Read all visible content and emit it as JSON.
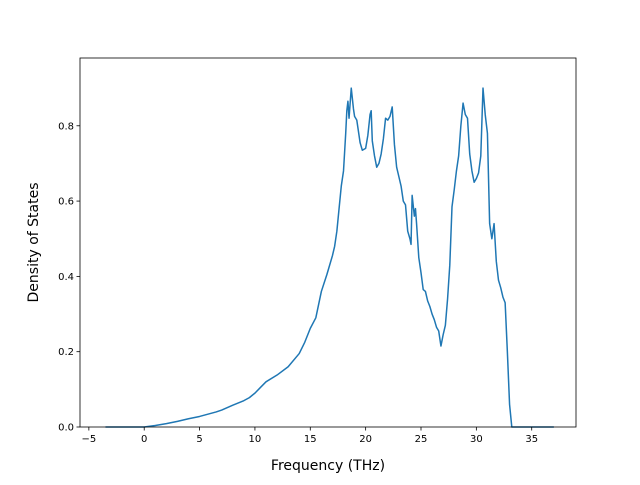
{
  "chart_data": {
    "type": "line",
    "title": "",
    "xlabel": "Frequency (THz)",
    "ylabel": "Density of States",
    "xlim": [
      -5.8,
      39
    ],
    "ylim": [
      0,
      0.98
    ],
    "xticks": [
      -5,
      0,
      5,
      10,
      15,
      20,
      25,
      30,
      35
    ],
    "xtick_labels": [
      "−5",
      "0",
      "5",
      "10",
      "15",
      "20",
      "25",
      "30",
      "35"
    ],
    "yticks": [
      0.0,
      0.2,
      0.4,
      0.6,
      0.8
    ],
    "ytick_labels": [
      "0.0",
      "0.2",
      "0.4",
      "0.6",
      "0.8"
    ],
    "grid": false,
    "legend": "none",
    "line_color": "#1f77b4",
    "series": [
      {
        "x": [
          -3.5,
          -2,
          -1,
          0,
          1,
          2,
          3,
          4,
          5,
          6,
          6.5,
          7,
          8,
          9,
          9.5,
          10,
          10.5,
          11,
          12,
          13,
          14,
          14.5,
          15,
          15.5,
          16,
          16.5,
          17,
          17.2,
          17.4,
          17.6,
          17.8,
          18,
          18.1,
          18.2,
          18.3,
          18.4,
          18.5,
          18.7,
          18.9,
          19,
          19.2,
          19.5,
          19.7,
          20,
          20.2,
          20.4,
          20.5,
          20.6,
          20.8,
          21,
          21.2,
          21.4,
          21.6,
          21.8,
          22,
          22.2,
          22.4,
          22.6,
          22.8,
          23,
          23.2,
          23.4,
          23.6,
          23.8,
          24,
          24.1,
          24.2,
          24.4,
          24.5,
          24.6,
          24.8,
          25,
          25.2,
          25.4,
          25.6,
          25.8,
          26,
          26.2,
          26.4,
          26.6,
          26.8,
          27,
          27.2,
          27.4,
          27.6,
          27.8,
          28,
          28.2,
          28.4,
          28.6,
          28.8,
          29,
          29.2,
          29.4,
          29.6,
          29.8,
          30,
          30.2,
          30.4,
          30.6,
          30.8,
          31,
          31.2,
          31.4,
          31.6,
          31.8,
          32,
          32.2,
          32.4,
          32.6,
          32.8,
          33,
          33.2,
          33.6,
          35,
          37
        ],
        "y": [
          0,
          0,
          0,
          0,
          0.004,
          0.009,
          0.015,
          0.022,
          0.028,
          0.036,
          0.04,
          0.045,
          0.058,
          0.07,
          0.078,
          0.09,
          0.105,
          0.12,
          0.138,
          0.16,
          0.195,
          0.225,
          0.262,
          0.29,
          0.36,
          0.405,
          0.455,
          0.48,
          0.52,
          0.58,
          0.64,
          0.68,
          0.73,
          0.78,
          0.84,
          0.865,
          0.82,
          0.9,
          0.845,
          0.825,
          0.815,
          0.755,
          0.735,
          0.74,
          0.775,
          0.83,
          0.84,
          0.76,
          0.72,
          0.69,
          0.7,
          0.725,
          0.765,
          0.82,
          0.815,
          0.825,
          0.85,
          0.75,
          0.69,
          0.665,
          0.64,
          0.6,
          0.59,
          0.52,
          0.5,
          0.485,
          0.615,
          0.56,
          0.58,
          0.54,
          0.45,
          0.41,
          0.365,
          0.36,
          0.335,
          0.32,
          0.3,
          0.285,
          0.265,
          0.255,
          0.215,
          0.245,
          0.27,
          0.34,
          0.43,
          0.585,
          0.63,
          0.68,
          0.72,
          0.8,
          0.86,
          0.83,
          0.82,
          0.725,
          0.68,
          0.65,
          0.66,
          0.675,
          0.72,
          0.9,
          0.83,
          0.78,
          0.54,
          0.5,
          0.54,
          0.44,
          0.39,
          0.37,
          0.345,
          0.33,
          0.2,
          0.06,
          0,
          0,
          0,
          0
        ]
      }
    ]
  }
}
